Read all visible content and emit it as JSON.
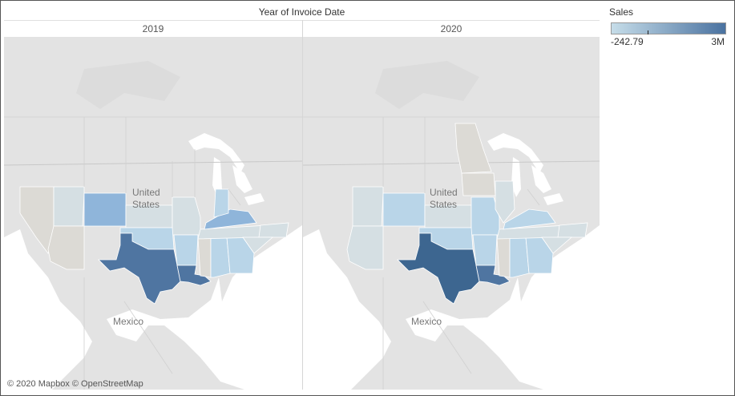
{
  "header": {
    "title": "Year of Invoice Date"
  },
  "columns": [
    "2019",
    "2020"
  ],
  "legend": {
    "title": "Sales",
    "min_label": "-242.79",
    "max_label": "3M",
    "color_low": "#c6dde9",
    "color_high": "#4a72a0"
  },
  "attribution": "© 2020 Mapbox © OpenStreetMap",
  "map_labels": {
    "country": "United",
    "country_cont": "States",
    "mexico": "Mexico"
  },
  "colors": {
    "land": "#e3e3e3",
    "water": "#ffffff",
    "neutral_state": "#dcdad5",
    "light_state": "#d5dfe3",
    "blue_light": "#b9d5e8",
    "blue_mid": "#8fb5da",
    "blue_dark": "#4f75a1",
    "blue_texas_2020": "#3d6690"
  },
  "sales_level_2019": {
    "Nevada": "neutral",
    "Arizona": "neutral",
    "Utah": "light",
    "Colorado": "blue_mid",
    "Kansas": "light",
    "Missouri": "light",
    "Oklahoma": "blue_light",
    "Arkansas": "blue_light",
    "Texas": "blue_dark",
    "Louisiana": "blue_dark",
    "Mississippi": "neutral",
    "Alabama": "blue_light",
    "Georgia": "blue_light",
    "Tennessee": "light",
    "Kentucky": "blue_mid",
    "Indiana": "blue_light",
    "NorthCarolina": "light",
    "SouthCarolina": "light"
  },
  "sales_level_2020": {
    "Arizona": "light",
    "Utah": "light",
    "Colorado": "blue_light",
    "Kansas": "light",
    "Missouri": "blue_light",
    "Oklahoma": "blue_light",
    "Arkansas": "blue_light",
    "Texas": "blue_texas",
    "Louisiana": "blue_dark",
    "Mississippi": "neutral",
    "Alabama": "blue_light",
    "Georgia": "blue_light",
    "Tennessee": "light",
    "Kentucky": "blue_light",
    "Illinois": "light",
    "Iowa": "neutral",
    "Minnesota": "neutral",
    "NorthCarolina": "light",
    "SouthCarolina": "light"
  }
}
